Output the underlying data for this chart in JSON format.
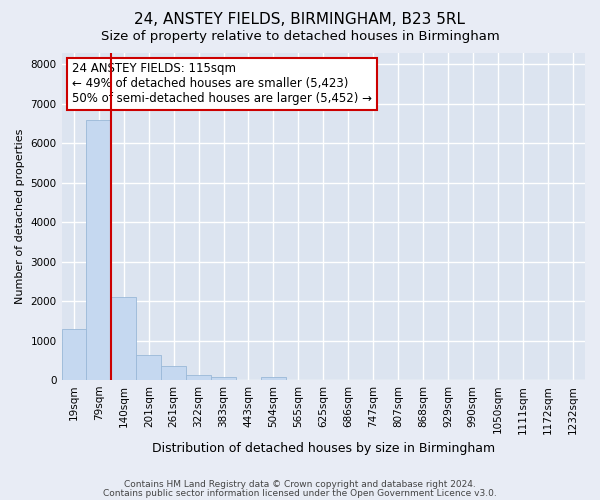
{
  "title": "24, ANSTEY FIELDS, BIRMINGHAM, B23 5RL",
  "subtitle": "Size of property relative to detached houses in Birmingham",
  "xlabel": "Distribution of detached houses by size in Birmingham",
  "ylabel": "Number of detached properties",
  "bar_labels": [
    "19sqm",
    "79sqm",
    "140sqm",
    "201sqm",
    "261sqm",
    "322sqm",
    "383sqm",
    "443sqm",
    "504sqm",
    "565sqm",
    "625sqm",
    "686sqm",
    "747sqm",
    "807sqm",
    "868sqm",
    "929sqm",
    "990sqm",
    "1050sqm",
    "1111sqm",
    "1172sqm",
    "1232sqm"
  ],
  "bar_values": [
    1300,
    6600,
    2100,
    640,
    350,
    120,
    80,
    0,
    80,
    0,
    0,
    0,
    0,
    0,
    0,
    0,
    0,
    0,
    0,
    0,
    0
  ],
  "bar_color": "#c5d8f0",
  "bar_edge_color": "#9ab8d8",
  "vline_color": "#cc0000",
  "vline_pos": 1.5,
  "annotation_text": "24 ANSTEY FIELDS: 115sqm\n← 49% of detached houses are smaller (5,423)\n50% of semi-detached houses are larger (5,452) →",
  "annotation_box_edgecolor": "#cc0000",
  "ylim": [
    0,
    8300
  ],
  "yticks": [
    0,
    1000,
    2000,
    3000,
    4000,
    5000,
    6000,
    7000,
    8000
  ],
  "footer1": "Contains HM Land Registry data © Crown copyright and database right 2024.",
  "footer2": "Contains public sector information licensed under the Open Government Licence v3.0.",
  "bg_color": "#e8ecf5",
  "plot_bg_color": "#dce4f0",
  "grid_color": "#ffffff",
  "title_fontsize": 11,
  "subtitle_fontsize": 9.5,
  "ylabel_fontsize": 8,
  "xlabel_fontsize": 9,
  "tick_fontsize": 7.5,
  "annotation_fontsize": 8.5,
  "footer_fontsize": 6.5
}
